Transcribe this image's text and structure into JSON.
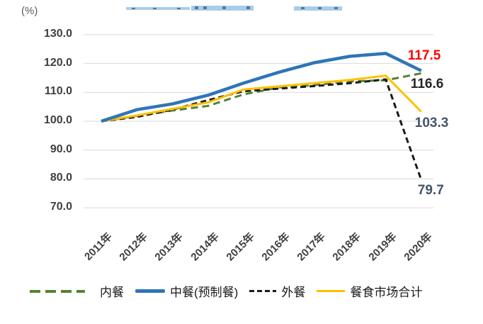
{
  "chart_data": {
    "type": "line",
    "unit_label": "(%)",
    "categories": [
      "2011年",
      "2012年",
      "2013年",
      "2014年",
      "2015年",
      "2016年",
      "2017年",
      "2018年",
      "2019年",
      "2020年"
    ],
    "yticks": [
      "130.0",
      "120.0",
      "110.0",
      "100.0",
      "90.0",
      "80.0",
      "70.0"
    ],
    "ylim": [
      70,
      130
    ],
    "grid": true,
    "legend_position": "bottom",
    "series": [
      {
        "name": "内餐",
        "color": "#548235",
        "line_style": "dashed",
        "values": [
          100.0,
          101.8,
          103.7,
          105.3,
          109.3,
          111.7,
          112.5,
          113.8,
          114.2,
          116.6
        ],
        "end_label": {
          "text": "116.6",
          "color": "#262626"
        }
      },
      {
        "name": "中餐(预制餐)",
        "color": "#2e75b6",
        "line_style": "solid",
        "values": [
          100.0,
          104.0,
          106.0,
          109.0,
          113.2,
          117.0,
          120.3,
          122.5,
          123.5,
          117.5
        ],
        "end_label": {
          "text": "117.5",
          "color": "#ff0000"
        }
      },
      {
        "name": "外餐",
        "color": "#1a1a1a",
        "line_style": "dashed",
        "values": [
          100.0,
          101.5,
          104.0,
          107.3,
          110.4,
          111.3,
          112.2,
          113.2,
          114.5,
          79.7
        ],
        "end_label": {
          "text": "79.7",
          "color": "#44546a"
        }
      },
      {
        "name": "餐食市场合计",
        "color": "#ffc000",
        "line_style": "solid",
        "values": [
          100.0,
          102.0,
          104.3,
          106.5,
          111.0,
          112.1,
          113.2,
          114.3,
          115.8,
          103.3
        ],
        "end_label": {
          "text": "103.3",
          "color": "#44546a"
        }
      }
    ]
  }
}
